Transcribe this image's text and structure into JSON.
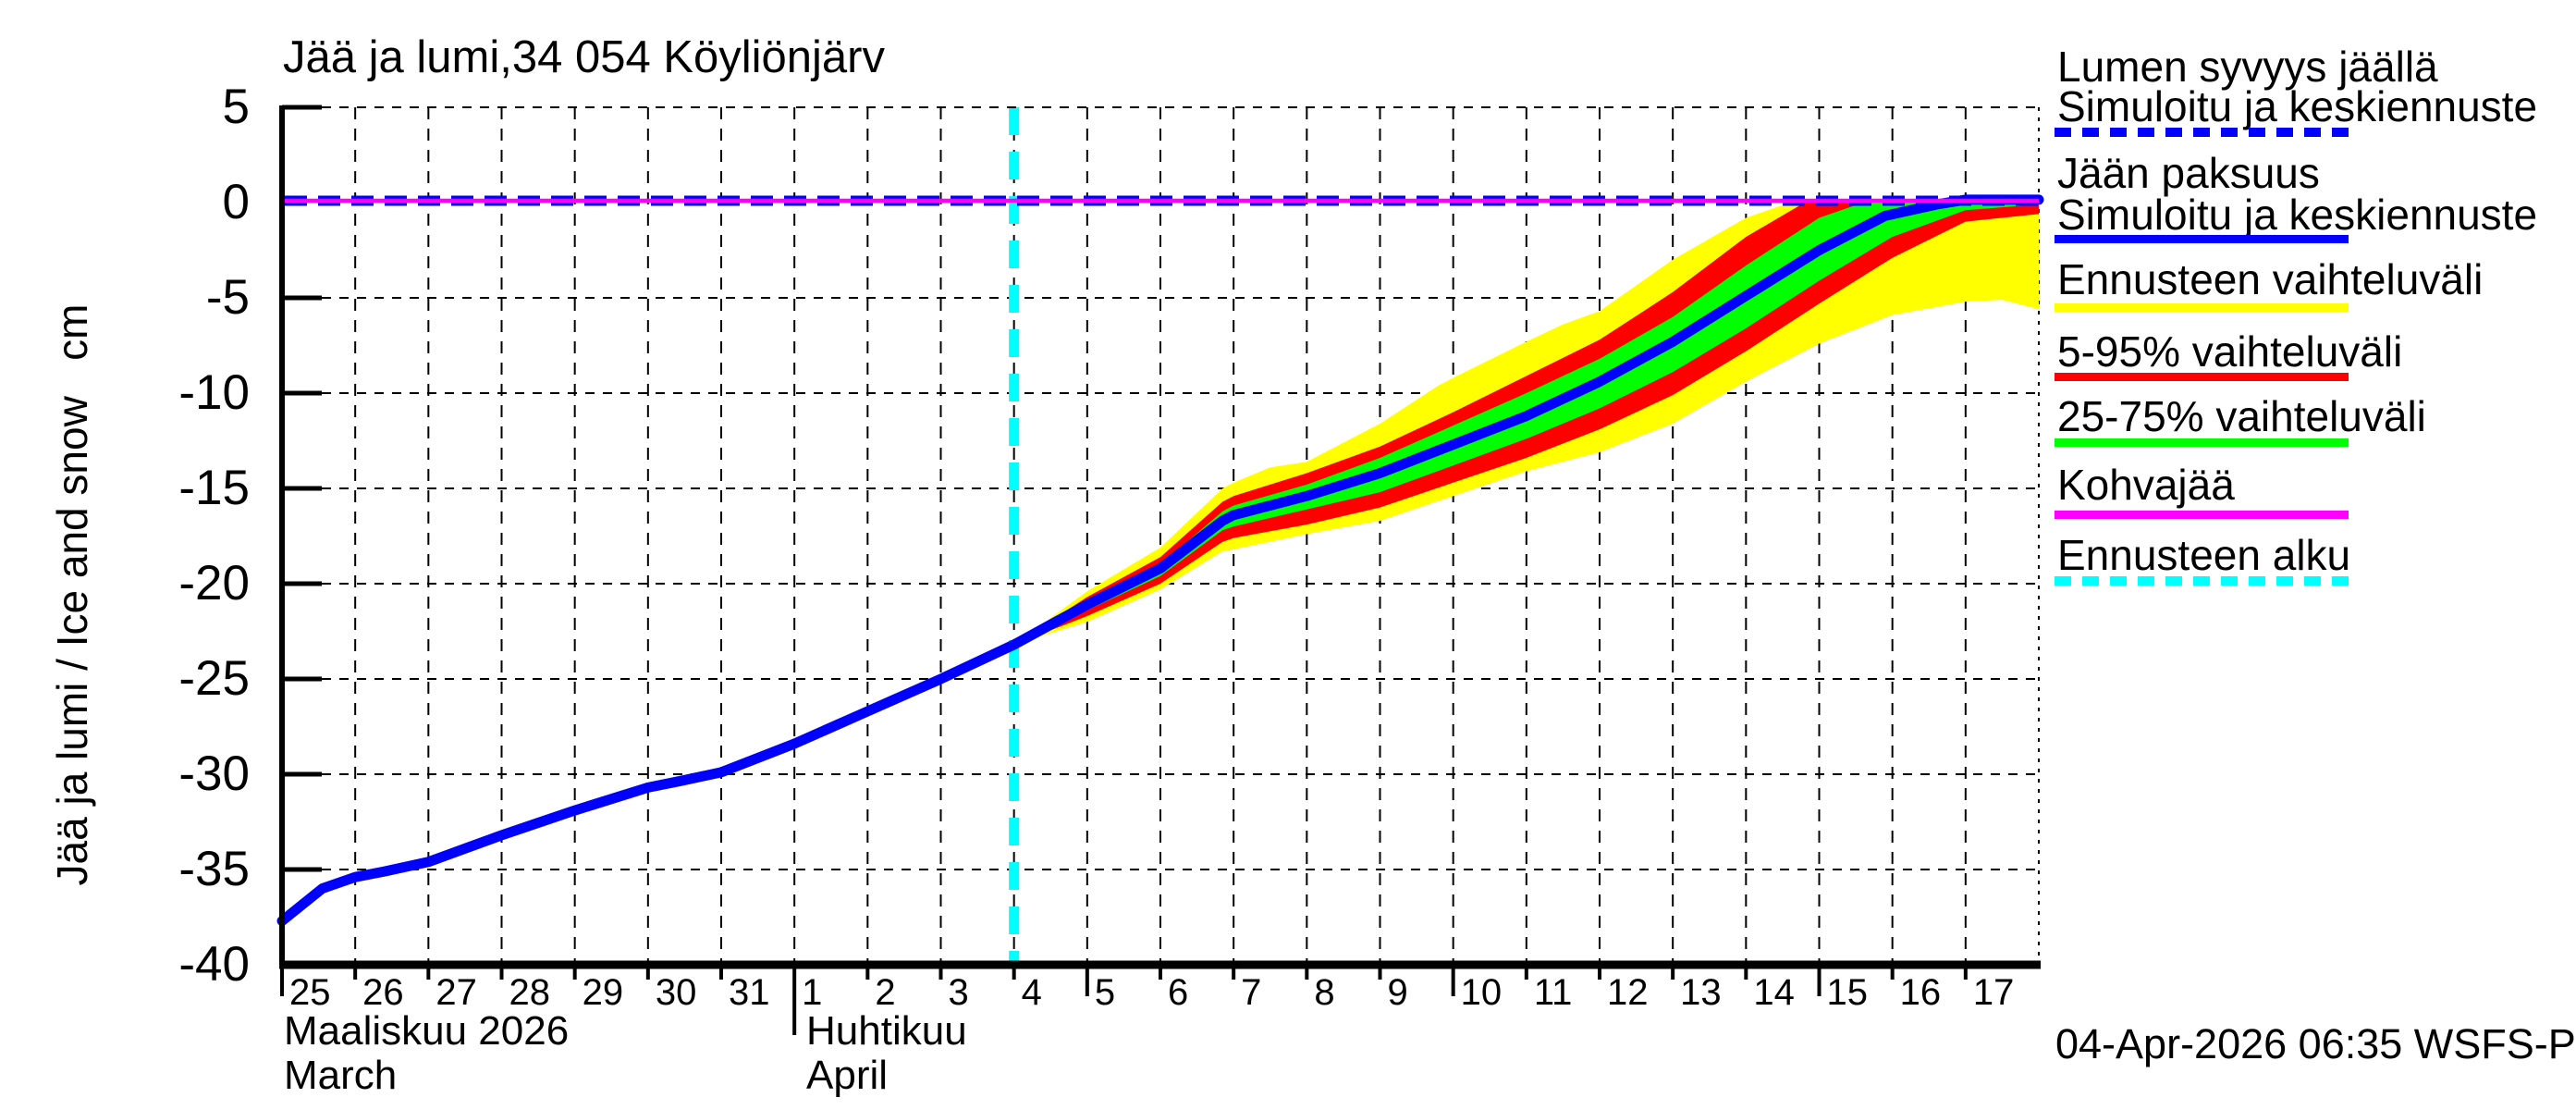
{
  "title": "Jää ja lumi,34 054 Köyliönjärv",
  "y_axis": {
    "label_rotated": "Jää ja lumi / Ice and snow   cm",
    "unit": "cm",
    "ticks": [
      5,
      0,
      -5,
      -10,
      -15,
      -20,
      -25,
      -30,
      -35,
      -40
    ]
  },
  "x_axis": {
    "march_days": [
      25,
      26,
      27,
      28,
      29,
      30,
      31
    ],
    "april_days": [
      1,
      2,
      3,
      4,
      5,
      6,
      7,
      8,
      9,
      10,
      11,
      12,
      13,
      14,
      15,
      16,
      17
    ],
    "month_left_fi": "Maaliskuu 2026",
    "month_left_en": "March",
    "month_right_fi": "Huhtikuu",
    "month_right_en": "April"
  },
  "timestamp": "04-Apr-2026 06:35 WSFS-P",
  "colors": {
    "blue": "#0000ff",
    "yellow": "#ffff00",
    "red": "#ff0000",
    "green": "#00ff00",
    "magenta": "#ff00ff",
    "cyan": "#00ffff",
    "black": "#000000"
  },
  "legend": [
    {
      "lines": [
        "Lumen syvyys jäällä",
        "Simuloitu ja keskiennuste"
      ],
      "color": "#0000ff",
      "style": "dashed"
    },
    {
      "lines": [
        "Jään paksuus",
        "Simuloitu ja keskiennuste"
      ],
      "color": "#0000ff",
      "style": "solid"
    },
    {
      "lines": [
        "Ennusteen vaihteluväli"
      ],
      "color": "#ffff00",
      "style": "solid"
    },
    {
      "lines": [
        "5-95% vaihteluväli"
      ],
      "color": "#ff0000",
      "style": "solid"
    },
    {
      "lines": [
        "25-75% vaihteluväli"
      ],
      "color": "#00ff00",
      "style": "solid"
    },
    {
      "lines": [
        "Kohvajää"
      ],
      "color": "#ff00ff",
      "style": "solid"
    },
    {
      "lines": [
        "Ennusteen alku"
      ],
      "color": "#00ffff",
      "style": "dashed"
    }
  ],
  "chart_data": {
    "type": "line",
    "title": "Jää ja lumi,34 054 Köyliönjärv",
    "ylabel": "Jää ja lumi / Ice and snow  cm",
    "ylim": [
      -40,
      5
    ],
    "x_start_date": "2026-03-25",
    "x_end_date": "2026-04-18",
    "x_unit": "day_offset_from_2026-03-25",
    "forecast_start_day_offset": 10,
    "grid": true,
    "legend_position": "right",
    "series": [
      {
        "name": "ennusteen_vaihteluvali_full_range_band",
        "label": "Ennusteen vaihteluväli",
        "type": "band",
        "color": "#ffff00",
        "top": [
          [
            10,
            -23.2
          ],
          [
            11,
            -20.4
          ],
          [
            12,
            -18.1
          ],
          [
            12.85,
            -15.0
          ],
          [
            13,
            -14.7
          ],
          [
            13.5,
            -13.9
          ],
          [
            14,
            -13.6
          ],
          [
            15,
            -11.6
          ],
          [
            15.8,
            -9.6
          ],
          [
            16,
            -9.2
          ],
          [
            17,
            -7.3
          ],
          [
            17.5,
            -6.4
          ],
          [
            18,
            -5.7
          ],
          [
            19,
            -3.0
          ],
          [
            20,
            -0.8
          ],
          [
            20.6,
            0
          ],
          [
            24,
            0
          ]
        ],
        "bottom": [
          [
            10,
            -23.2
          ],
          [
            11,
            -22.0
          ],
          [
            12,
            -20.3
          ],
          [
            12.85,
            -18.3
          ],
          [
            13,
            -18.2
          ],
          [
            14,
            -17.4
          ],
          [
            15,
            -16.7
          ],
          [
            16,
            -15.4
          ],
          [
            17,
            -14.1
          ],
          [
            18,
            -13.1
          ],
          [
            19,
            -11.6
          ],
          [
            20,
            -9.4
          ],
          [
            21,
            -7.4
          ],
          [
            22,
            -5.9
          ],
          [
            23,
            -5.2
          ],
          [
            23.5,
            -5.1
          ],
          [
            24,
            -5.6
          ]
        ]
      },
      {
        "name": "band_5_95_vaihteluvali",
        "label": "5-95% vaihteluväli",
        "type": "band",
        "color": "#ff0000",
        "top": [
          [
            10,
            -23.2
          ],
          [
            11,
            -20.7
          ],
          [
            12,
            -18.6
          ],
          [
            12.85,
            -15.7
          ],
          [
            13,
            -15.4
          ],
          [
            14,
            -14.2
          ],
          [
            15,
            -12.8
          ],
          [
            16,
            -11.0
          ],
          [
            17,
            -9.1
          ],
          [
            18,
            -7.2
          ],
          [
            19,
            -4.7
          ],
          [
            20,
            -1.8
          ],
          [
            20.8,
            0
          ],
          [
            24,
            0
          ]
        ],
        "bottom": [
          [
            10,
            -23.2
          ],
          [
            11,
            -21.7
          ],
          [
            12,
            -20.0
          ],
          [
            12.85,
            -17.8
          ],
          [
            13,
            -17.6
          ],
          [
            14,
            -16.9
          ],
          [
            15,
            -16.0
          ],
          [
            16,
            -14.7
          ],
          [
            17,
            -13.4
          ],
          [
            18,
            -11.9
          ],
          [
            19,
            -10.1
          ],
          [
            20,
            -7.8
          ],
          [
            21,
            -5.3
          ],
          [
            22,
            -2.9
          ],
          [
            23,
            -1.0
          ],
          [
            24,
            -0.6
          ]
        ]
      },
      {
        "name": "band_25_75_vaihteluvali",
        "label": "25-75% vaihteluväli",
        "type": "band",
        "color": "#00ff00",
        "top": [
          [
            10,
            -23.2
          ],
          [
            11,
            -20.9
          ],
          [
            12,
            -19.0
          ],
          [
            12.85,
            -16.2
          ],
          [
            13,
            -15.9
          ],
          [
            14,
            -14.8
          ],
          [
            15,
            -13.4
          ],
          [
            16,
            -11.7
          ],
          [
            17,
            -10.0
          ],
          [
            18,
            -8.2
          ],
          [
            19,
            -6.0
          ],
          [
            20,
            -3.3
          ],
          [
            21,
            -0.8
          ],
          [
            21.6,
            0
          ],
          [
            24,
            0
          ]
        ],
        "bottom": [
          [
            10,
            -23.2
          ],
          [
            11,
            -21.4
          ],
          [
            12,
            -19.6
          ],
          [
            12.85,
            -17.2
          ],
          [
            13,
            -17.0
          ],
          [
            14,
            -16.1
          ],
          [
            15,
            -15.2
          ],
          [
            16,
            -13.8
          ],
          [
            17,
            -12.4
          ],
          [
            18,
            -10.8
          ],
          [
            19,
            -8.9
          ],
          [
            20,
            -6.6
          ],
          [
            21,
            -4.1
          ],
          [
            22,
            -1.8
          ],
          [
            23,
            -0.4
          ],
          [
            24,
            -0.1
          ]
        ]
      },
      {
        "name": "jaan_paksuus_simuloitu_ja_keskiennuste",
        "label": "Jään paksuus Simuloitu ja keskiennuste",
        "type": "line",
        "color": "#0000ff",
        "width": 11,
        "points": [
          [
            0,
            -37.7
          ],
          [
            0.55,
            -36.0
          ],
          [
            1,
            -35.4
          ],
          [
            1.4,
            -35.1
          ],
          [
            2,
            -34.6
          ],
          [
            3,
            -33.2
          ],
          [
            4,
            -31.9
          ],
          [
            5,
            -30.7
          ],
          [
            5.45,
            -30.35
          ],
          [
            6,
            -29.9
          ],
          [
            7,
            -28.4
          ],
          [
            8,
            -26.7
          ],
          [
            9,
            -25.0
          ],
          [
            10,
            -23.2
          ],
          [
            11,
            -21.1
          ],
          [
            12,
            -19.2
          ],
          [
            12.85,
            -16.7
          ],
          [
            13,
            -16.4
          ],
          [
            14,
            -15.4
          ],
          [
            15,
            -14.2
          ],
          [
            16,
            -12.7
          ],
          [
            17,
            -11.2
          ],
          [
            18,
            -9.4
          ],
          [
            19,
            -7.3
          ],
          [
            20,
            -4.9
          ],
          [
            21,
            -2.5
          ],
          [
            21.9,
            -0.7
          ],
          [
            22.6,
            -0.1
          ],
          [
            23,
            0.15
          ],
          [
            24,
            0.15
          ]
        ]
      },
      {
        "name": "lumen_syvyys_jaalla_simuloitu_ja_keskiennuste",
        "label": "Lumen syvyys jäällä Simuloitu ja keskiennuste",
        "type": "hline",
        "style": "dashed",
        "color": "#0000ff",
        "width": 11,
        "value": 0
      },
      {
        "name": "kohvajaa",
        "label": "Kohvajää",
        "type": "hline",
        "style": "solid",
        "color": "#ff00ff",
        "width": 4.5,
        "value": 0
      },
      {
        "name": "ennusteen_alku",
        "label": "Ennusteen alku",
        "type": "vline",
        "style": "dashed",
        "color": "#00ffff",
        "width": 11,
        "day_offset": 10
      }
    ]
  }
}
